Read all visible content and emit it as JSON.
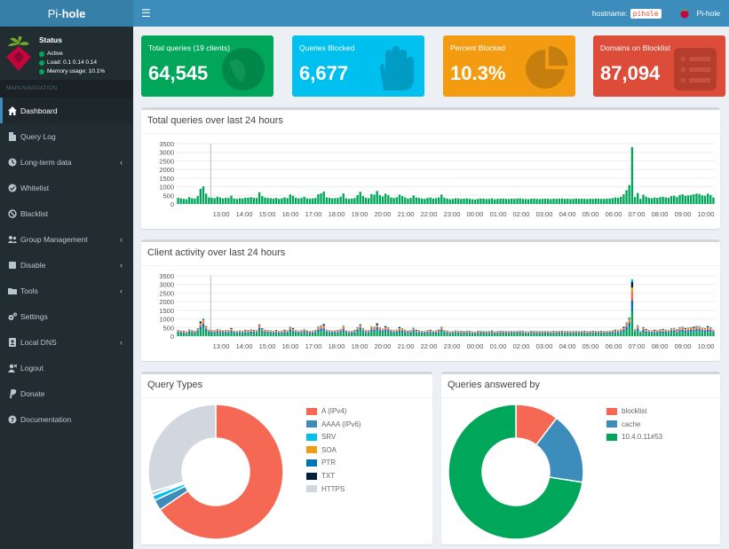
{
  "header": {
    "logo_a": "Pi-",
    "logo_b": "hole",
    "menu_icon": "hamburger-icon",
    "hostname_label": "hostname:",
    "hostname_value": "pihole",
    "user_label": "Pi-hole"
  },
  "sidebar": {
    "status_title": "Status",
    "status_active": "Active",
    "status_load": "Load:  0.1  0.14  0.14",
    "status_memory": "Memory usage:  10.1%",
    "nav_header": "MAIN NAVIGATION",
    "items": [
      {
        "label": "Dashboard",
        "icon": "home-icon",
        "active": true
      },
      {
        "label": "Query Log",
        "icon": "file-icon"
      },
      {
        "label": "Long-term data",
        "icon": "history-icon",
        "submenu": true
      },
      {
        "label": "Whitelist",
        "icon": "check-circle-icon"
      },
      {
        "label": "Blacklist",
        "icon": "ban-icon"
      },
      {
        "label": "Group Management",
        "icon": "users-icon",
        "submenu": true
      },
      {
        "label": "Disable",
        "icon": "stop-icon",
        "submenu": true
      },
      {
        "label": "Tools",
        "icon": "folder-icon",
        "submenu": true
      },
      {
        "label": "Settings",
        "icon": "gears-icon"
      },
      {
        "label": "Local DNS",
        "icon": "address-book-icon",
        "submenu": true
      },
      {
        "label": "Logout",
        "icon": "user-times-icon"
      },
      {
        "label": "Donate",
        "icon": "paypal-icon"
      },
      {
        "label": "Documentation",
        "icon": "question-circle-icon"
      }
    ]
  },
  "stats": [
    {
      "label": "Total queries (19 clients)",
      "value": "64,545",
      "color": "#00a65a",
      "icon": "globe-icon"
    },
    {
      "label": "Queries Blocked",
      "value": "6,677",
      "color": "#00c0ef",
      "icon": "hand-icon"
    },
    {
      "label": "Percent Blocked",
      "value": "10.3%",
      "color": "#f39c12",
      "icon": "pie-chart-icon"
    },
    {
      "label": "Domains on Blocklist",
      "value": "87,094",
      "color": "#dd4b39",
      "icon": "list-icon"
    }
  ],
  "colors": {
    "green": "#00a65a",
    "blue": "#0073b7",
    "light_blue": "#00c0ef",
    "orange": "#f39c12",
    "red": "#f56954",
    "dark": "#001f3f",
    "gray": "#d2d6de"
  },
  "chart_data": [
    {
      "type": "bar",
      "title": "Total queries over last 24 hours",
      "ylim": [
        0,
        3500
      ],
      "y_ticks": [
        "3500",
        "3000",
        "2500",
        "2000",
        "1500",
        "1000",
        "500",
        "0"
      ],
      "x_ticks": [
        "13:00",
        "14:00",
        "15:00",
        "16:00",
        "17:00",
        "18:00",
        "19:00",
        "20:00",
        "21:00",
        "22:00",
        "23:00",
        "00:00",
        "01:00",
        "02:00",
        "03:00",
        "04:00",
        "05:00",
        "06:00",
        "07:00",
        "08:00",
        "09:00",
        "10:00"
      ],
      "series": [
        {
          "values": [
            360,
            330,
            300,
            280,
            400,
            340,
            320,
            460,
            880,
            1020,
            600,
            380,
            360,
            340,
            420,
            380,
            330,
            360,
            350,
            480,
            320,
            300,
            340,
            320,
            360,
            360,
            400,
            360,
            350,
            680,
            460,
            380,
            350,
            340,
            320,
            360,
            300,
            330,
            380,
            340,
            550,
            480,
            360,
            330,
            350,
            420,
            330,
            310,
            330,
            350,
            560,
            620,
            720,
            380,
            360,
            330,
            340,
            350,
            420,
            610,
            330,
            300,
            320,
            350,
            520,
            710,
            460,
            360,
            340,
            580,
            540,
            760,
            520,
            440,
            600,
            510,
            380,
            350,
            390,
            540,
            460,
            380,
            320,
            350,
            490,
            380,
            350,
            320,
            300,
            350,
            380,
            320,
            340,
            380,
            550,
            360,
            320,
            280,
            300,
            340,
            320,
            300,
            310,
            330,
            300,
            280,
            260,
            300,
            320,
            310,
            290,
            300,
            330,
            280,
            300,
            310,
            320,
            300,
            290,
            310,
            300,
            320,
            330,
            300,
            290,
            280,
            310,
            320,
            300,
            290,
            300,
            310,
            300,
            290,
            310,
            300,
            310,
            320,
            300,
            310,
            290,
            300,
            320,
            300,
            310,
            300,
            290,
            310,
            300,
            320,
            310,
            300,
            300,
            310,
            320,
            340,
            380,
            360,
            420,
            560,
            800,
            1100,
            3300,
            400,
            640,
            300,
            540,
            420,
            360,
            340,
            380,
            350,
            400,
            420,
            380,
            360,
            460,
            480,
            400,
            520,
            560,
            480,
            500,
            520,
            560,
            600,
            580,
            500,
            480,
            600,
            520,
            380
          ]
        }
      ]
    },
    {
      "type": "bar",
      "title": "Client activity over last 24 hours",
      "ylim": [
        0,
        3500
      ],
      "y_ticks": [
        "3500",
        "3000",
        "2500",
        "2000",
        "1500",
        "1000",
        "500",
        "0"
      ],
      "x_ticks": [
        "13:00",
        "14:00",
        "15:00",
        "16:00",
        "17:00",
        "18:00",
        "19:00",
        "20:00",
        "21:00",
        "22:00",
        "23:00",
        "00:00",
        "01:00",
        "02:00",
        "03:00",
        "04:00",
        "05:00",
        "06:00",
        "07:00",
        "08:00",
        "09:00",
        "10:00"
      ],
      "stacked": true,
      "series_colors": [
        "#00a65a",
        "#0073b7",
        "#f56954",
        "#f39c12",
        "#001f3f",
        "#00c0ef"
      ]
    },
    {
      "type": "pie",
      "title": "Query Types",
      "categories": [
        "A (IPv4)",
        "AAAA (IPv6)",
        "SRV",
        "SOA",
        "PTR",
        "TXT",
        "HTTPS"
      ],
      "colors": [
        "#f56954",
        "#3c8dbc",
        "#00c0ef",
        "#f39c12",
        "#0073b7",
        "#001f3f",
        "#d2d6de"
      ],
      "values": [
        65.5,
        2.5,
        1.2,
        0.3,
        0.5,
        0.2,
        29.8
      ]
    },
    {
      "type": "pie",
      "title": "Queries answered by",
      "categories": [
        "blocklist",
        "cache",
        "10.4.0.11#53"
      ],
      "colors": [
        "#f56954",
        "#3c8dbc",
        "#00a65a"
      ],
      "values": [
        10.3,
        17.2,
        72.5
      ]
    }
  ]
}
